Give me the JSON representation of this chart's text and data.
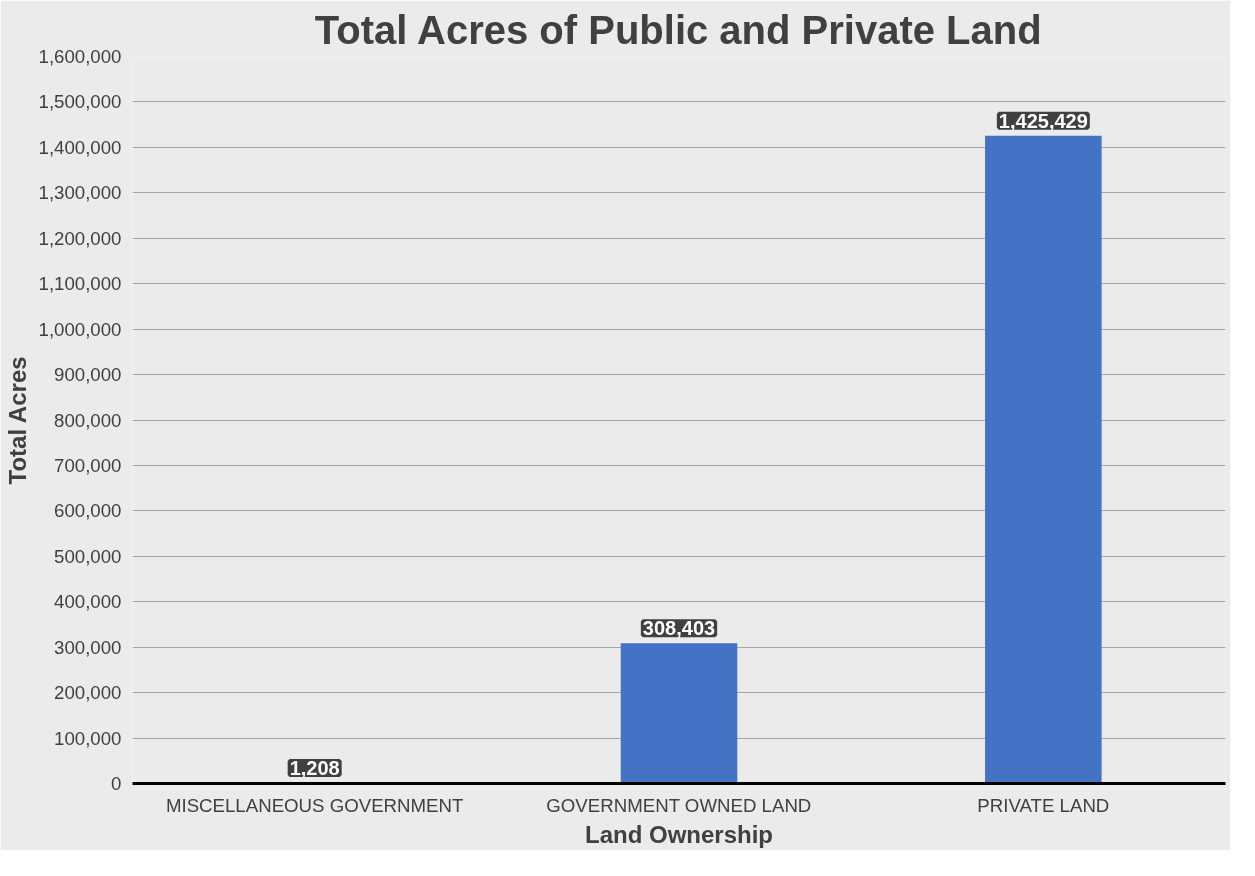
{
  "chart_data": {
    "type": "bar",
    "title": "Total Acres of Public and Private Land",
    "xlabel": "Land Ownership",
    "ylabel": "Total Acres",
    "categories": [
      "MISCELLANEOUS GOVERNMENT",
      "GOVERNMENT OWNED LAND",
      "PRIVATE LAND"
    ],
    "values": [
      1208,
      308403,
      1425429
    ],
    "color": "#4472c4",
    "value_labels": [
      "1,208",
      "308,403",
      "1,425,429"
    ],
    "ylim": [
      0,
      1600000
    ],
    "yticks": [
      {
        "value": 0,
        "label": "0"
      },
      {
        "value": 100000,
        "label": "100,000"
      },
      {
        "value": 200000,
        "label": "200,000"
      },
      {
        "value": 300000,
        "label": "300,000"
      },
      {
        "value": 400000,
        "label": "400,000"
      },
      {
        "value": 500000,
        "label": "500,000"
      },
      {
        "value": 600000,
        "label": "600,000"
      },
      {
        "value": 700000,
        "label": "700,000"
      },
      {
        "value": 800000,
        "label": "800,000"
      },
      {
        "value": 900000,
        "label": "900,000"
      },
      {
        "value": 1000000,
        "label": "1,000,000"
      },
      {
        "value": 1100000,
        "label": "1,100,000"
      },
      {
        "value": 1200000,
        "label": "1,200,000"
      },
      {
        "value": 1300000,
        "label": "1,300,000"
      },
      {
        "value": 1400000,
        "label": "1,400,000"
      },
      {
        "value": 1500000,
        "label": "1,500,000"
      },
      {
        "value": 1600000,
        "label": "1,600,000"
      }
    ],
    "grid": "y"
  }
}
